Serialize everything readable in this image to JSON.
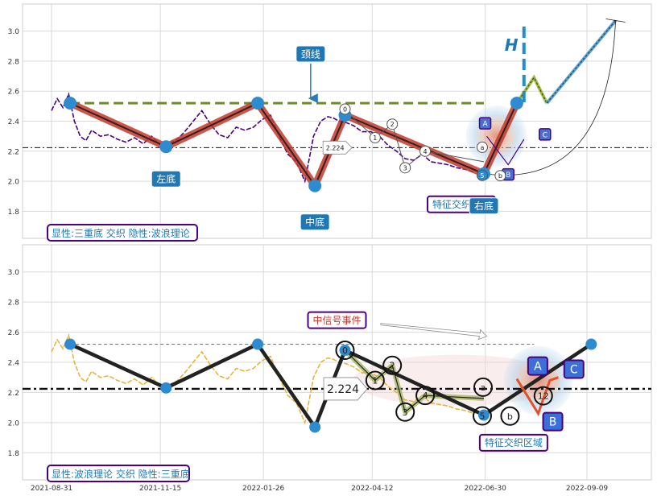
{
  "chart_data": [
    {
      "type": "line",
      "ylim": [
        1.62,
        3.18
      ],
      "y_ticks": [
        "1.8",
        "2.0",
        "2.2",
        "2.4",
        "2.6",
        "2.8",
        "3.0"
      ],
      "grid": true,
      "price_series": {
        "name": "",
        "color": "#4b0082",
        "x": [
          "2021-08-31",
          "2021-09-04",
          "2021-09-08",
          "2021-09-12",
          "2021-09-16",
          "2021-09-20",
          "2021-09-24",
          "2021-09-28",
          "2021-10-04",
          "2021-10-10",
          "2021-10-16",
          "2021-10-22",
          "2021-10-28",
          "2021-11-03",
          "2021-11-09",
          "2021-11-15",
          "2021-11-21",
          "2021-11-27",
          "2021-12-02",
          "2021-12-08",
          "2021-12-14",
          "2021-12-20",
          "2021-12-26",
          "2022-01-01",
          "2022-01-07",
          "2022-01-13",
          "2022-01-19",
          "2022-01-25",
          "2022-01-31",
          "2022-02-06",
          "2022-02-12",
          "2022-02-18",
          "2022-02-24",
          "2022-03-02",
          "2022-03-07",
          "2022-03-12",
          "2022-03-16",
          "2022-03-20",
          "2022-03-25",
          "2022-03-30",
          "2022-04-05",
          "2022-04-11",
          "2022-04-17",
          "2022-04-23",
          "2022-04-29",
          "2022-05-05",
          "2022-05-11",
          "2022-05-17",
          "2022-05-23",
          "2022-05-29",
          "2022-06-04",
          "2022-06-10",
          "2022-06-16",
          "2022-06-22"
        ],
        "y": [
          2.47,
          2.55,
          2.49,
          2.58,
          2.4,
          2.3,
          2.27,
          2.34,
          2.3,
          2.31,
          2.28,
          2.26,
          2.29,
          2.25,
          2.3,
          2.24,
          2.25,
          2.28,
          2.33,
          2.4,
          2.47,
          2.38,
          2.31,
          2.29,
          2.36,
          2.34,
          2.36,
          2.41,
          2.44,
          2.3,
          2.18,
          2.13,
          2.0,
          2.3,
          2.4,
          2.43,
          2.42,
          2.4,
          2.39,
          2.37,
          2.33,
          2.33,
          2.3,
          2.24,
          2.2,
          2.15,
          2.14,
          2.18,
          2.13,
          2.12,
          2.11,
          2.09,
          2.08,
          2.06
        ]
      },
      "pattern_points": {
        "x": [
          "2021-09-13",
          "2021-11-19",
          "2022-01-22",
          "2022-03-03",
          "2022-03-24",
          "2022-06-29",
          "2022-07-22"
        ],
        "y": [
          2.52,
          2.23,
          2.52,
          1.97,
          2.44,
          2.05,
          2.52
        ]
      },
      "neckline": {
        "y": 2.52,
        "x_start": "2021-09-13",
        "x_end": "2022-06-29",
        "color": "#6b8e23"
      },
      "ref_line": {
        "y": 2.224,
        "label": "2.224"
      },
      "wave_points": {
        "x": [
          "2022-03-24",
          "2022-04-14",
          "2022-04-26",
          "2022-05-05",
          "2022-05-19",
          "2022-06-29",
          "2022-06-29",
          "2022-07-06"
        ],
        "y": [
          2.47,
          2.29,
          2.38,
          2.09,
          2.2,
          2.13,
          2.05,
          2.08
        ],
        "labels": [
          "0",
          "1",
          "2",
          "3",
          "4",
          "a",
          "5",
          "b"
        ]
      },
      "projection": {
        "x": [
          "2022-07-22",
          "2022-08-03",
          "2022-08-12",
          "2022-09-29"
        ],
        "y": [
          2.52,
          2.69,
          2.52,
          3.07
        ]
      },
      "abc": {
        "x": [
          "2022-07-01",
          "2022-07-16",
          "2022-07-27"
        ],
        "y": [
          2.3,
          2.11,
          2.28
        ],
        "labels": [
          "A",
          "B",
          "C"
        ]
      },
      "h_line": {
        "x": "2022-07-27",
        "label": "H"
      },
      "annotations": {
        "neckline": "颈线",
        "left_bottom": "左底",
        "mid_bottom": "中底",
        "right_bottom": "右底",
        "interweave": "特征交织区域",
        "legend": "显性:三重底 交织 隐性:波浪理论"
      }
    },
    {
      "type": "line",
      "ylim": [
        1.62,
        3.18
      ],
      "y_ticks": [
        "1.8",
        "2.0",
        "2.2",
        "2.4",
        "2.6",
        "2.8",
        "3.0"
      ],
      "x_ticks": [
        "2021-08-31",
        "2021-11-15",
        "2022-01-26",
        "2022-04-12",
        "2022-06-30",
        "2022-09-09"
      ],
      "grid": true,
      "price_series": {
        "name": "",
        "color": "#e8b130",
        "x": [
          "2021-08-31",
          "2021-09-04",
          "2021-09-08",
          "2021-09-12",
          "2021-09-16",
          "2021-09-20",
          "2021-09-24",
          "2021-09-28",
          "2021-10-04",
          "2021-10-10",
          "2021-10-16",
          "2021-10-22",
          "2021-10-28",
          "2021-11-03",
          "2021-11-09",
          "2021-11-15",
          "2021-11-21",
          "2021-11-27",
          "2021-12-02",
          "2021-12-08",
          "2021-12-14",
          "2021-12-20",
          "2021-12-26",
          "2022-01-01",
          "2022-01-07",
          "2022-01-13",
          "2022-01-19",
          "2022-01-25",
          "2022-01-31",
          "2022-02-06",
          "2022-02-12",
          "2022-02-18",
          "2022-02-24",
          "2022-03-02",
          "2022-03-07",
          "2022-03-12",
          "2022-03-16",
          "2022-03-20",
          "2022-03-25",
          "2022-03-30",
          "2022-04-05",
          "2022-04-11",
          "2022-04-17",
          "2022-04-23",
          "2022-04-29",
          "2022-05-05",
          "2022-05-11",
          "2022-05-17",
          "2022-05-23",
          "2022-05-29",
          "2022-06-04",
          "2022-06-10",
          "2022-06-16",
          "2022-06-22"
        ],
        "y": [
          2.47,
          2.55,
          2.49,
          2.58,
          2.4,
          2.3,
          2.27,
          2.34,
          2.3,
          2.31,
          2.28,
          2.26,
          2.29,
          2.25,
          2.3,
          2.24,
          2.25,
          2.28,
          2.33,
          2.4,
          2.47,
          2.38,
          2.31,
          2.29,
          2.36,
          2.34,
          2.36,
          2.41,
          2.44,
          2.3,
          2.18,
          2.13,
          2.0,
          2.3,
          2.4,
          2.43,
          2.42,
          2.4,
          2.39,
          2.37,
          2.33,
          2.33,
          2.3,
          2.24,
          2.2,
          2.15,
          2.14,
          2.18,
          2.13,
          2.12,
          2.11,
          2.09,
          2.08,
          2.06
        ]
      },
      "pattern_points": {
        "x": [
          "2021-09-13",
          "2021-11-19",
          "2022-01-22",
          "2022-03-03",
          "2022-03-24",
          "2022-06-29",
          "2022-09-12"
        ],
        "y": [
          2.52,
          2.23,
          2.52,
          1.97,
          2.48,
          2.05,
          2.52
        ]
      },
      "neckline": {
        "y": 2.52,
        "x_start": "2021-09-13",
        "x_end": "2022-08-03",
        "color": "#6b8e23"
      },
      "ref_line": {
        "y": 2.224,
        "label": "2.224"
      },
      "wave_points": {
        "x": [
          "2022-03-24",
          "2022-04-14",
          "2022-04-26",
          "2022-05-05",
          "2022-05-19",
          "2022-06-29",
          "2022-06-29",
          "2022-07-06",
          "2022-08-05"
        ],
        "y": [
          2.48,
          2.28,
          2.38,
          2.07,
          2.18,
          2.16,
          2.05,
          2.07,
          2.21
        ],
        "labels": [
          "0",
          "1",
          "2",
          "3",
          "4",
          "a",
          "5",
          "b",
          "12"
        ]
      },
      "abc": {
        "x": [
          "2022-07-22",
          "2022-08-06",
          "2022-08-14"
        ],
        "y": [
          2.29,
          2.06,
          2.28
        ],
        "labels": [
          "A",
          "B",
          "C"
        ]
      },
      "annotations": {
        "signal": "中信号事件",
        "interweave": "特征交织区域",
        "legend": "显性:波浪理论 交织 隐性:三重底"
      }
    }
  ]
}
